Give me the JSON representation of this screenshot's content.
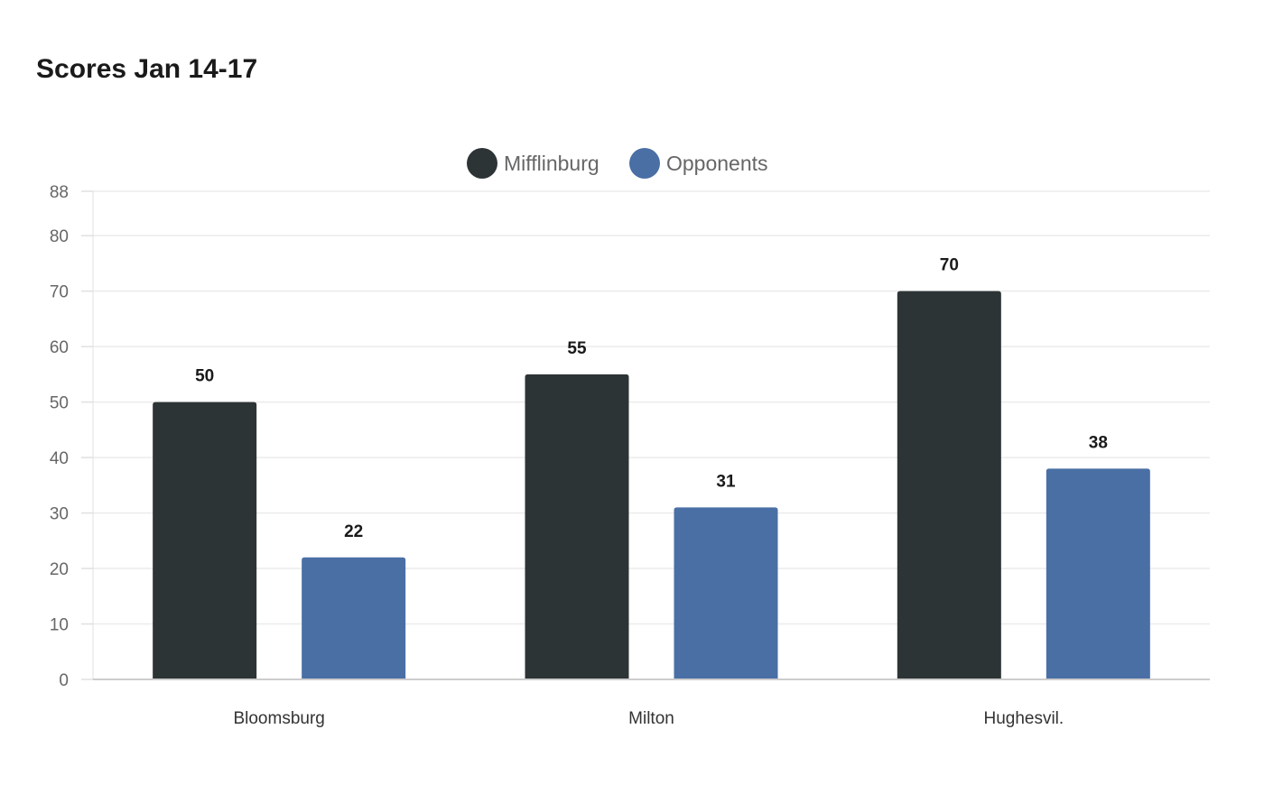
{
  "chart_data": {
    "type": "bar",
    "title": "Scores Jan 14-17",
    "categories": [
      "Bloomsburg",
      "Milton",
      "Hughesvil."
    ],
    "series": [
      {
        "name": "Mifflinburg",
        "color": "#2d3436",
        "values": [
          50,
          55,
          70
        ]
      },
      {
        "name": "Opponents",
        "color": "#4a6fa5",
        "values": [
          22,
          31,
          38
        ]
      }
    ],
    "xlabel": "",
    "ylabel": "",
    "ylim": [
      0,
      88
    ],
    "yticks": [
      0,
      10,
      20,
      30,
      40,
      50,
      60,
      70,
      80,
      88
    ],
    "grid": true,
    "legend": "top-center",
    "data_labels": true
  }
}
